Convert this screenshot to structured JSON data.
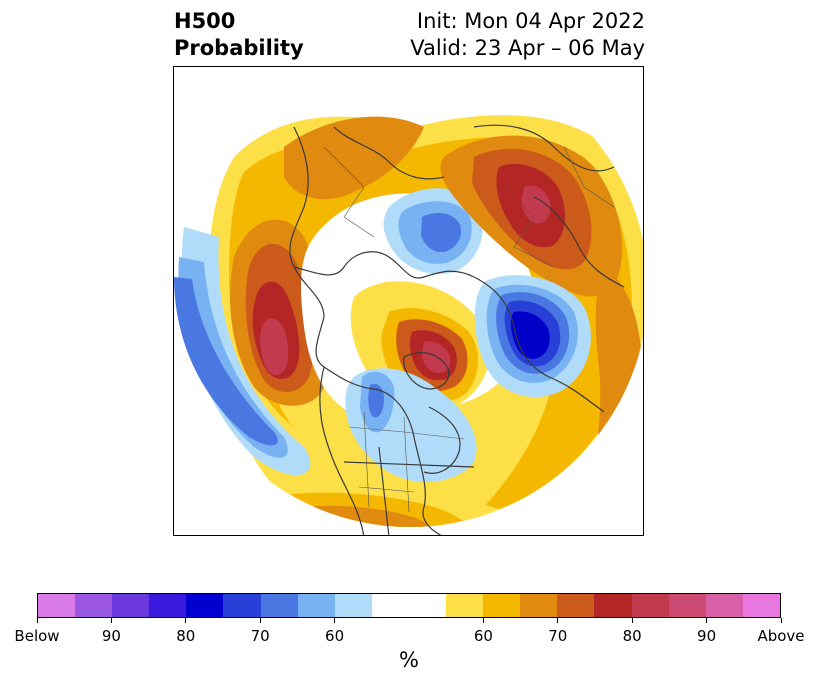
{
  "header": {
    "title_line1": "H500",
    "title_line2": "Probability",
    "init_label": "Init: Mon 04 Apr 2022",
    "valid_label": "Valid: 23 Apr – 06 May"
  },
  "map": {
    "projection": "north-polar-stereographic",
    "fill_colors": {
      "above_50": "#fde047",
      "above_60": "#f5b800",
      "above_70": "#e08a10",
      "above_75": "#cc5a1a",
      "above_80": "#b42626",
      "above_85": "#c23a4e",
      "below_50": "#b0dcfa",
      "below_60": "#78b2f2",
      "below_70": "#4a78e2",
      "below_80": "#2840d8",
      "below_90": "#0000c8"
    }
  },
  "colorbar": {
    "segments": [
      "#d87ae8",
      "#9a58e2",
      "#6a38dc",
      "#3a1adc",
      "#0000d0",
      "#2840d8",
      "#4a78e2",
      "#78b2f2",
      "#b0dcfa",
      "#ffffff",
      "#ffffff",
      "#fde047",
      "#f5b800",
      "#e08a10",
      "#cc5a1a",
      "#b42626",
      "#c23a4e",
      "#cc4a72",
      "#d860a8",
      "#e878e0"
    ],
    "tick_labels": [
      "Below",
      "90",
      "80",
      "70",
      "60",
      "60",
      "70",
      "80",
      "90",
      "Above"
    ],
    "units_label": "%"
  }
}
